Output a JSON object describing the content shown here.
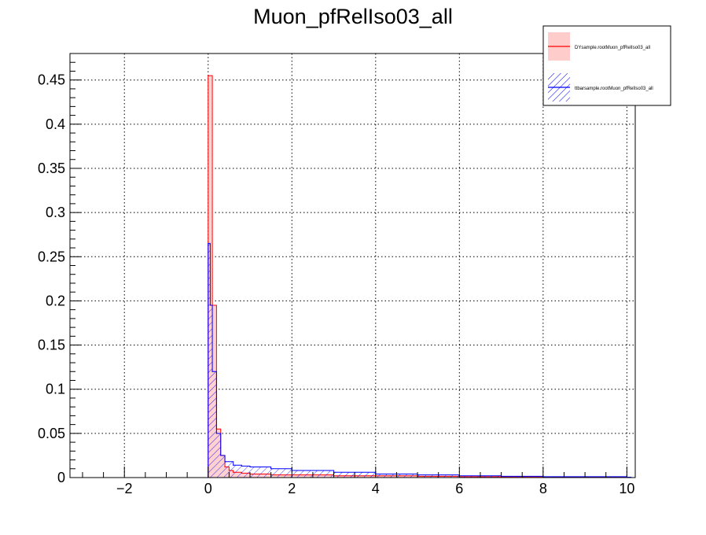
{
  "chart_data": {
    "type": "histogram",
    "title": "Muon_pfRelIso03_all",
    "xlabel": "",
    "ylabel": "",
    "xlim": [
      -3.3,
      10.2
    ],
    "ylim": [
      0,
      0.48
    ],
    "x_ticks": [
      -2,
      0,
      2,
      4,
      6,
      8,
      10
    ],
    "x_tick_labels": [
      "−2",
      "0",
      "2",
      "4",
      "6",
      "8",
      "10"
    ],
    "y_ticks": [
      0,
      0.05,
      0.1,
      0.15,
      0.2,
      0.25,
      0.3,
      0.35,
      0.4,
      0.45
    ],
    "y_tick_labels": [
      "0",
      "0.05",
      "0.1",
      "0.15",
      "0.2",
      "0.25",
      "0.3",
      "0.35",
      "0.4",
      "0.45"
    ],
    "grid": true,
    "legend_position": "top-right",
    "series": [
      {
        "name": "DYsample.rootMuon_pfRelIso03_all",
        "color": "#ff0000",
        "fill": "#ffcccc",
        "fill_style": "solid",
        "points": [
          [
            0.0,
            0.455
          ],
          [
            0.1,
            0.195
          ],
          [
            0.2,
            0.055
          ],
          [
            0.3,
            0.025
          ],
          [
            0.4,
            0.012
          ],
          [
            0.5,
            0.008
          ],
          [
            0.6,
            0.006
          ],
          [
            0.8,
            0.005
          ],
          [
            1.0,
            0.004
          ],
          [
            1.5,
            0.003
          ],
          [
            2.0,
            0.003
          ],
          [
            3.0,
            0.002
          ],
          [
            4.0,
            0.002
          ],
          [
            5.0,
            0.0015
          ],
          [
            6.0,
            0.001
          ],
          [
            7.0,
            0.001
          ],
          [
            8.0,
            0.0008
          ],
          [
            9.0,
            0.0008
          ],
          [
            10.0,
            0.0005
          ]
        ]
      },
      {
        "name": "ttbarsample.rootMuon_pfRelIso03_all",
        "color": "#0000ff",
        "fill": "#0000ff",
        "fill_style": "hatched",
        "points": [
          [
            0.0,
            0.265
          ],
          [
            0.05,
            0.195
          ],
          [
            0.1,
            0.12
          ],
          [
            0.2,
            0.05
          ],
          [
            0.3,
            0.025
          ],
          [
            0.4,
            0.018
          ],
          [
            0.6,
            0.014
          ],
          [
            0.8,
            0.013
          ],
          [
            1.0,
            0.012
          ],
          [
            1.5,
            0.01
          ],
          [
            2.0,
            0.008
          ],
          [
            3.0,
            0.006
          ],
          [
            4.0,
            0.004
          ],
          [
            5.0,
            0.003
          ],
          [
            6.0,
            0.002
          ],
          [
            7.0,
            0.0015
          ],
          [
            8.0,
            0.001
          ],
          [
            9.0,
            0.001
          ],
          [
            10.0,
            0.0005
          ]
        ]
      }
    ]
  }
}
